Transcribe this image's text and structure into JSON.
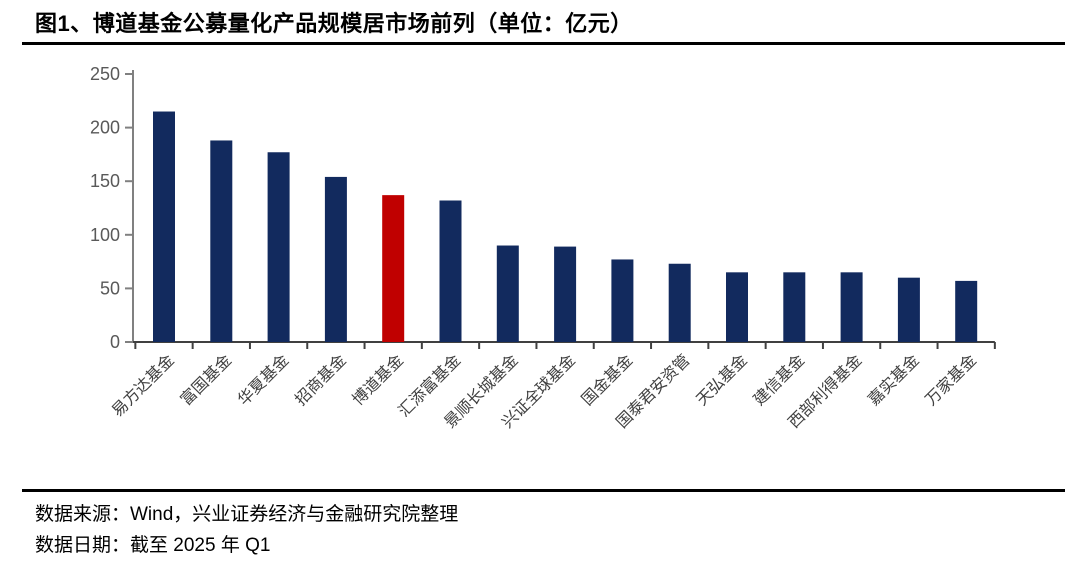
{
  "title": "图1、博道基金公募量化产品规模居市场前列（单位：亿元）",
  "footer": {
    "source": "数据来源：Wind，兴业证券经济与金融研究院整理",
    "date": "数据日期：截至 2025 年 Q1"
  },
  "colors": {
    "bar": "#122A5E",
    "highlight": "#C00000",
    "y_axis": "#808080",
    "x_axis": "#404040",
    "tick_label": "#595959",
    "category_label": "#404040"
  },
  "chart_data": {
    "type": "bar",
    "categories": [
      "易方达基金",
      "富国基金",
      "华夏基金",
      "招商基金",
      "博道基金",
      "汇添富基金",
      "景顺长城基金",
      "兴证全球基金",
      "国金基金",
      "国泰君安资管",
      "天弘基金",
      "建信基金",
      "西部利得基金",
      "嘉实基金",
      "万家基金"
    ],
    "values": [
      215,
      188,
      177,
      154,
      137,
      132,
      90,
      89,
      77,
      73,
      65,
      65,
      65,
      60,
      57
    ],
    "highlight_index": 4,
    "highlight_category": "博道基金",
    "unit": "亿元",
    "ylim": [
      0,
      250
    ],
    "yticks": [
      0,
      50,
      100,
      150,
      200,
      250
    ],
    "grid": false,
    "legend": false,
    "x_label_rotation_deg": 45
  }
}
